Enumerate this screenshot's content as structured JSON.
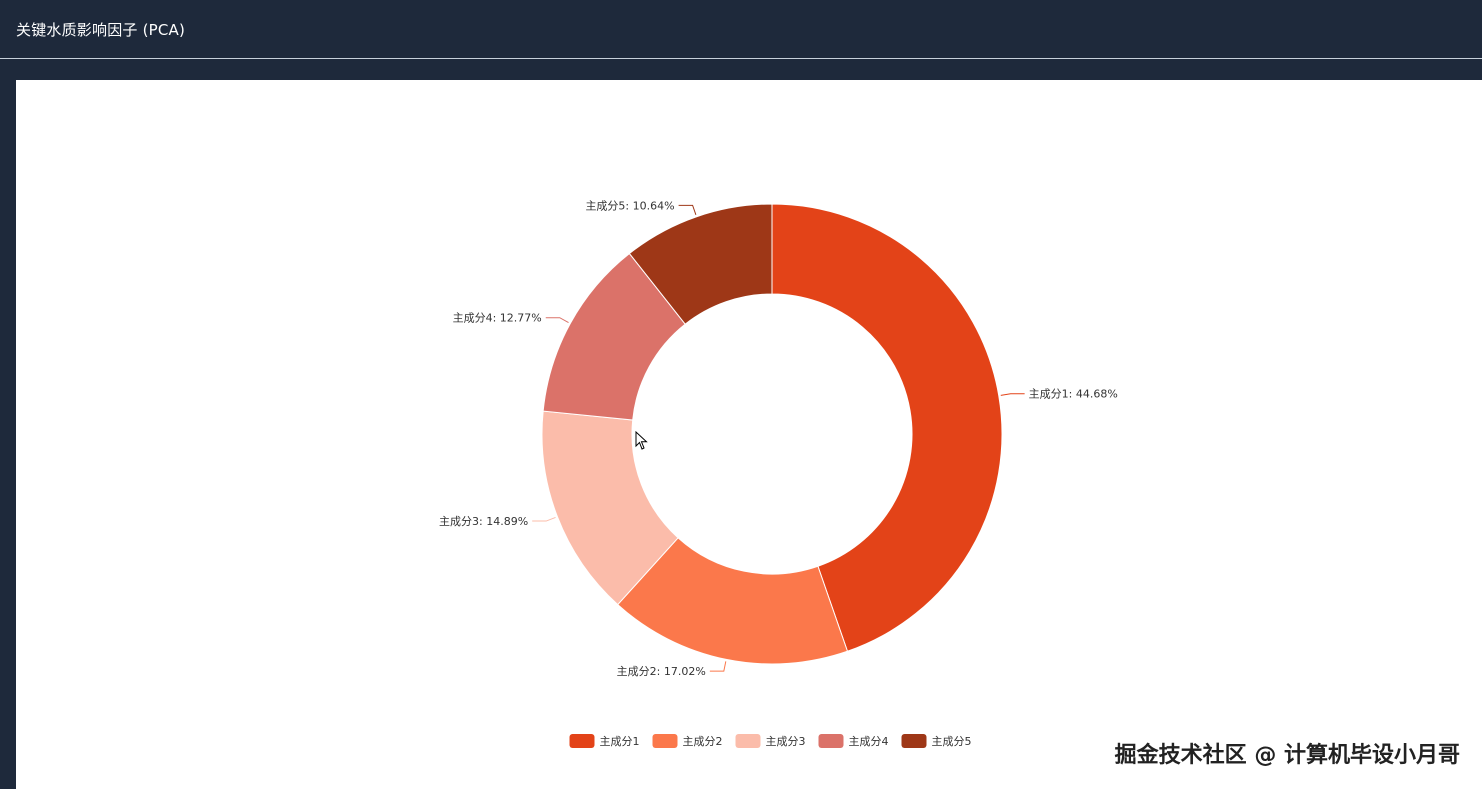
{
  "header": {
    "title": "关键水质影响因子 (PCA)"
  },
  "watermark": "掘金技术社区 @ 计算机毕设小月哥",
  "chart_data": {
    "type": "pie",
    "donut": true,
    "series": [
      {
        "name": "主成分1",
        "value": 44.68,
        "label": "主成分1: 44.68%",
        "color": "#e34318"
      },
      {
        "name": "主成分2",
        "value": 17.02,
        "label": "主成分2: 17.02%",
        "color": "#fb784b"
      },
      {
        "name": "主成分3",
        "value": 14.89,
        "label": "主成分3: 14.89%",
        "color": "#fbbcaa"
      },
      {
        "name": "主成分4",
        "value": 12.77,
        "label": "主成分4: 12.77%",
        "color": "#db7269"
      },
      {
        "name": "主成分5",
        "value": 10.64,
        "label": "主成分5: 10.64%",
        "color": "#9e3717"
      }
    ],
    "legend_position": "bottom-center"
  }
}
